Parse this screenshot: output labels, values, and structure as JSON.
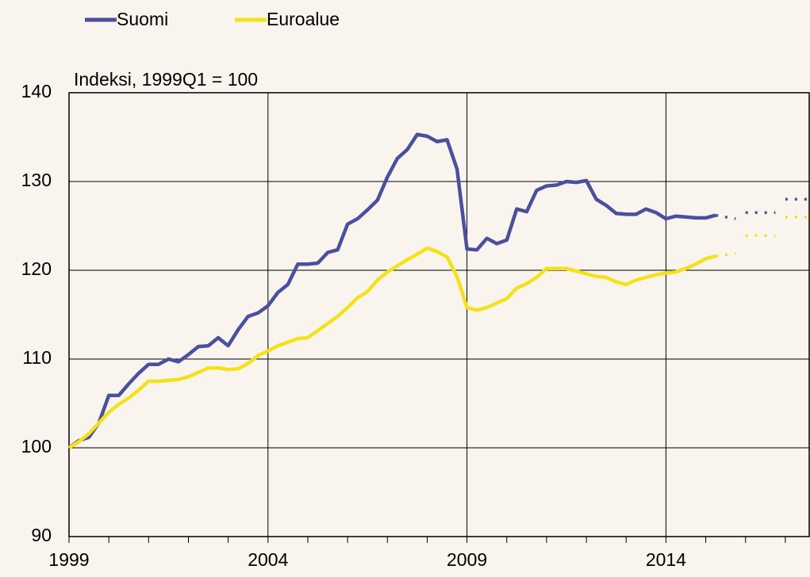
{
  "chart_data": {
    "type": "line",
    "ylabel": "Indeksi, 1999Q1 = 100",
    "x": [
      1999,
      1999.25,
      1999.5,
      1999.75,
      2000,
      2000.25,
      2000.5,
      2000.75,
      2001,
      2001.25,
      2001.5,
      2001.75,
      2002,
      2002.25,
      2002.5,
      2002.75,
      2003,
      2003.25,
      2003.5,
      2003.75,
      2004,
      2004.25,
      2004.5,
      2004.75,
      2005,
      2005.25,
      2005.5,
      2005.75,
      2006,
      2006.25,
      2006.5,
      2006.75,
      2007,
      2007.25,
      2007.5,
      2007.75,
      2008,
      2008.25,
      2008.5,
      2008.75,
      2009,
      2009.25,
      2009.5,
      2009.75,
      2010,
      2010.25,
      2010.5,
      2010.75,
      2011,
      2011.25,
      2011.5,
      2011.75,
      2012,
      2012.25,
      2012.5,
      2012.75,
      2013,
      2013.25,
      2013.5,
      2013.75,
      2014,
      2014.25,
      2014.5,
      2014.75,
      2015,
      2015.25
    ],
    "series": [
      {
        "name": "Suomi",
        "color": "#4b4f9e",
        "values": [
          100,
          100.8,
          101.2,
          102.8,
          105.9,
          105.9,
          107.2,
          108.4,
          109.4,
          109.4,
          110.0,
          109.7,
          110.5,
          111.4,
          111.5,
          112.4,
          111.5,
          113.3,
          114.8,
          115.2,
          116.0,
          117.5,
          118.4,
          120.7,
          120.7,
          120.8,
          122.0,
          122.3,
          125.2,
          125.8,
          126.8,
          127.9,
          130.5,
          132.6,
          133.6,
          135.3,
          135.1,
          134.5,
          134.7,
          131.4,
          122.4,
          122.3,
          123.6,
          123.0,
          123.4,
          126.9,
          126.6,
          129.0,
          129.5,
          129.6,
          130.0,
          129.9,
          130.1,
          128.0,
          127.3,
          126.4,
          126.3,
          126.3,
          126.9,
          126.5,
          125.8,
          126.1,
          126.0,
          125.9,
          125.9,
          126.2
        ]
      },
      {
        "name": "Euroalue",
        "color": "#f5e11a",
        "values": [
          100,
          100.7,
          101.6,
          102.8,
          104.0,
          104.9,
          105.6,
          106.5,
          107.5,
          107.5,
          107.6,
          107.7,
          108.0,
          108.5,
          109.0,
          109.0,
          108.8,
          108.9,
          109.5,
          110.4,
          110.9,
          111.5,
          111.9,
          112.3,
          112.4,
          113.2,
          114.0,
          114.8,
          115.8,
          116.9,
          117.6,
          118.9,
          119.8,
          120.5,
          121.2,
          121.8,
          122.5,
          122.1,
          121.5,
          119.3,
          115.8,
          115.5,
          115.8,
          116.3,
          116.8,
          118.0,
          118.5,
          119.2,
          120.2,
          120.2,
          120.2,
          119.9,
          119.6,
          119.3,
          119.2,
          118.7,
          118.4,
          118.9,
          119.2,
          119.5,
          119.7,
          119.8,
          120.2,
          120.7,
          121.3,
          121.6
        ]
      },
      {
        "color": "#4b4f9e",
        "style": "dotted",
        "x": [
          2015.25,
          2015.75,
          2015.875,
          2016,
          2016.75,
          2016.875,
          2017,
          2017.6
        ],
        "values": [
          126.2,
          125.8,
          null,
          126.5,
          126.5,
          null,
          128,
          128
        ]
      },
      {
        "color": "#f5e11a",
        "style": "dotted",
        "x": [
          2015.25,
          2015.75,
          2015.875,
          2016,
          2016.75,
          2016.875,
          2017,
          2017.6
        ],
        "values": [
          121.6,
          121.9,
          null,
          123.9,
          123.9,
          null,
          126,
          126
        ]
      }
    ],
    "xlim": [
      1999,
      2017.6
    ],
    "xticks": [
      1999,
      2004,
      2009,
      2014
    ],
    "xminorticks": [
      2000,
      2001,
      2002,
      2003,
      2005,
      2006,
      2007,
      2008,
      2010,
      2011,
      2012,
      2013,
      2015,
      2016,
      2017
    ],
    "ylim": [
      90,
      140
    ],
    "yticks": [
      90,
      100,
      110,
      120,
      130,
      140
    ],
    "grid": true,
    "legend": "top-left"
  }
}
